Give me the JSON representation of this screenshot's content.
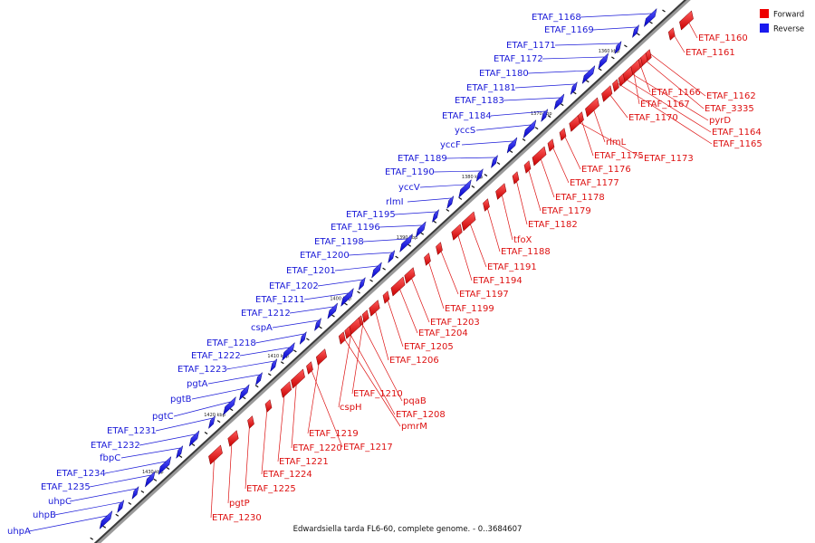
{
  "caption": "Edwardsiella tarda FL6-60, complete genome. - 0..3684607",
  "legend": {
    "forward": {
      "label": "Forward",
      "color": "#ee0000"
    },
    "reverse": {
      "label": "Reverse",
      "color": "#1a1aee"
    }
  },
  "axis_ticks": [
    "1360 kbp",
    "1370 kbp",
    "1380 kbp",
    "1390 kbp",
    "1400 kbp",
    "1410 kbp",
    "1420 kbp",
    "1430 kbp"
  ],
  "reverse_genes": [
    "ETAF_1168",
    "ETAF_1169",
    "ETAF_1171",
    "ETAF_1172",
    "ETAF_1180",
    "ETAF_1181",
    "ETAF_1183",
    "ETAF_1184",
    "yccS",
    "yccF",
    "ETAF_1189",
    "ETAF_1190",
    "yccV",
    "rlmI",
    "ETAF_1195",
    "ETAF_1196",
    "ETAF_1198",
    "ETAF_1200",
    "ETAF_1201",
    "ETAF_1202",
    "ETAF_1211",
    "ETAF_1212",
    "cspA",
    "ETAF_1218",
    "ETAF_1222",
    "ETAF_1223",
    "pgtA",
    "pgtB",
    "pgtC",
    "ETAF_1231",
    "ETAF_1232",
    "fbpC",
    "ETAF_1234",
    "ETAF_1235",
    "uhpC",
    "uhpB",
    "uhpA"
  ],
  "forward_genes": [
    "ETAF_1160",
    "ETAF_1161",
    "ETAF_1162",
    "ETAF_3335",
    "ETAF_1166",
    "ETAF_1167",
    "pyrD",
    "ETAF_1164",
    "ETAF_1165",
    "ETAF_1170",
    "rlmL",
    "ETAF_1175",
    "ETAF_1173",
    "ETAF_1176",
    "ETAF_1177",
    "ETAF_1178",
    "ETAF_1179",
    "ETAF_1182",
    "tfoX",
    "ETAF_1188",
    "ETAF_1191",
    "ETAF_1194",
    "ETAF_1197",
    "ETAF_1199",
    "ETAF_1203",
    "ETAF_1204",
    "ETAF_1205",
    "ETAF_1206",
    "ETAF_1210",
    "pqaB",
    "cspH",
    "ETAF_1208",
    "pmrM",
    "ETAF_1219",
    "ETAF_1217",
    "ETAF_1220",
    "ETAF_1221",
    "ETAF_1224",
    "ETAF_1225",
    "pgtP",
    "ETAF_1230"
  ]
}
